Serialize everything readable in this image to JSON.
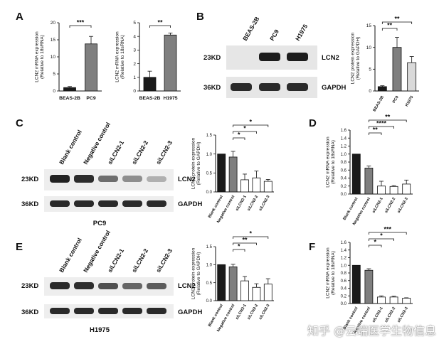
{
  "watermark": "知乎 @云端医学生物信息",
  "colors": {
    "black": "#1a1a1a",
    "dark_gray": "#7f7f7f",
    "light_gray": "#d9d9d9",
    "white": "#ffffff"
  },
  "blot_labels": {
    "kd23": "23KD",
    "kd36": "36KD",
    "lcn2": "LCN2",
    "gapdh": "GAPDH",
    "pc9_caption": "PC9",
    "h1975_caption": "H1975"
  },
  "panel_letters": {
    "A": "A",
    "B": "B",
    "C": "C",
    "D": "D",
    "E": "E",
    "F": "F"
  },
  "lanes_B": [
    "BEAS-2B",
    "PC9",
    "H1975"
  ],
  "lanes_CE": [
    "Blank control",
    "Negative control",
    "siLCN2-1",
    "siLCN2-2",
    "siLCN2-3"
  ],
  "chart_data": [
    {
      "id": "A1",
      "type": "bar",
      "categories": [
        "BEAS-2B",
        "PC9"
      ],
      "values": [
        1,
        13.8
      ],
      "errors": [
        0.3,
        2.2
      ],
      "colors": [
        "#1a1a1a",
        "#7f7f7f"
      ],
      "ylabel": "LCN2 mRNA expression\n(Relative to 18sRNA)",
      "ylim": [
        0,
        20
      ],
      "yticks": [
        0,
        5,
        10,
        15,
        20
      ],
      "annotations": [
        {
          "from": 0,
          "to": 1,
          "text": "***"
        }
      ]
    },
    {
      "id": "A2",
      "type": "bar",
      "categories": [
        "BEAS-2B",
        "H1975"
      ],
      "values": [
        1,
        4.1
      ],
      "errors": [
        0.45,
        0.15
      ],
      "colors": [
        "#1a1a1a",
        "#7f7f7f"
      ],
      "ylabel": "LCN2 mRNA expression\n(Relative to 18sRNA)",
      "ylim": [
        0,
        5
      ],
      "yticks": [
        0,
        1,
        2,
        3,
        4,
        5
      ],
      "annotations": [
        {
          "from": 0,
          "to": 1,
          "text": "**"
        }
      ]
    },
    {
      "id": "B",
      "type": "bar",
      "categories": [
        "BEAS-2B",
        "PC9",
        "H1975"
      ],
      "values": [
        1,
        10,
        6.5
      ],
      "errors": [
        0.2,
        2.3,
        1.4
      ],
      "colors": [
        "#1a1a1a",
        "#7f7f7f",
        "#d9d9d9"
      ],
      "ylabel": "LCN2 protein expression\n(Relative to GAPDH)",
      "ylim": [
        0,
        15
      ],
      "yticks": [
        0,
        5,
        10,
        15
      ],
      "annotations": [
        {
          "from": 0,
          "to": 1,
          "text": "**"
        },
        {
          "from": 0,
          "to": 2,
          "text": "**"
        }
      ]
    },
    {
      "id": "C",
      "type": "bar",
      "categories": [
        "Blank control",
        "Negative control",
        "siLCN2-1",
        "siLCN2-2",
        "siLCN2-3"
      ],
      "values": [
        1,
        0.92,
        0.32,
        0.37,
        0.28
      ],
      "errors": [
        0,
        0.15,
        0.15,
        0.18,
        0.05
      ],
      "colors": [
        "#1a1a1a",
        "#7f7f7f",
        "#ffffff",
        "#ffffff",
        "#ffffff"
      ],
      "ylabel": "LCN2 protein expression\n(Relative to GAPDH)",
      "ylim": [
        0,
        1.5
      ],
      "yticks": [
        0.0,
        0.5,
        1.0,
        1.5
      ],
      "annotations": [
        {
          "from": 1,
          "to": 2,
          "text": "*"
        },
        {
          "from": 1,
          "to": 3,
          "text": "*"
        },
        {
          "from": 1,
          "to": 4,
          "text": "*"
        }
      ]
    },
    {
      "id": "D",
      "type": "bar",
      "categories": [
        "Blank control",
        "Negative control",
        "siLCN2-1",
        "siLCN2-2",
        "siLCN2-3"
      ],
      "values": [
        1,
        0.65,
        0.2,
        0.19,
        0.25
      ],
      "errors": [
        0,
        0.05,
        0.12,
        0.02,
        0.1
      ],
      "colors": [
        "#1a1a1a",
        "#7f7f7f",
        "#ffffff",
        "#ffffff",
        "#ffffff"
      ],
      "ylabel": "LCN2 mRNA expression\n(Relative to 18sRNA)",
      "ylim": [
        0,
        1.6
      ],
      "yticks": [
        0.0,
        0.2,
        0.4,
        0.6,
        0.8,
        1.0,
        1.2,
        1.4,
        1.6
      ],
      "annotations": [
        {
          "from": 1,
          "to": 2,
          "text": "**"
        },
        {
          "from": 1,
          "to": 3,
          "text": "****"
        },
        {
          "from": 1,
          "to": 4,
          "text": "**"
        }
      ]
    },
    {
      "id": "E",
      "type": "bar",
      "categories": [
        "Blank control",
        "Negative control",
        "siLCN2-1",
        "siLCN2-2",
        "siLCN2-3"
      ],
      "values": [
        1,
        0.94,
        0.55,
        0.37,
        0.46
      ],
      "errors": [
        0,
        0.07,
        0.12,
        0.1,
        0.15
      ],
      "colors": [
        "#1a1a1a",
        "#7f7f7f",
        "#ffffff",
        "#ffffff",
        "#ffffff"
      ],
      "ylabel": "LCN2 protein expression\n(Relative to GAPDH)",
      "ylim": [
        0,
        1.5
      ],
      "yticks": [
        0.0,
        0.5,
        1.0,
        1.5
      ],
      "annotations": [
        {
          "from": 1,
          "to": 2,
          "text": "*"
        },
        {
          "from": 1,
          "to": 3,
          "text": "**"
        },
        {
          "from": 1,
          "to": 4,
          "text": "*"
        }
      ]
    },
    {
      "id": "F",
      "type": "bar",
      "categories": [
        "Blank control",
        "Negative control",
        "siLCN2-1",
        "siLCN2-2",
        "siLCN2-3"
      ],
      "values": [
        1,
        0.87,
        0.17,
        0.17,
        0.14
      ],
      "errors": [
        0,
        0.04,
        0.03,
        0.02,
        0.01
      ],
      "colors": [
        "#1a1a1a",
        "#7f7f7f",
        "#ffffff",
        "#ffffff",
        "#ffffff"
      ],
      "ylabel": "LCN2 mRNA expression\n(Relative to 18sRNA)",
      "ylim": [
        0,
        1.6
      ],
      "yticks": [
        0.0,
        0.2,
        0.4,
        0.6,
        0.8,
        1.0,
        1.2,
        1.4,
        1.6
      ],
      "annotations": [
        {
          "from": 1,
          "to": 2,
          "text": "*"
        },
        {
          "from": 1,
          "to": 3,
          "text": "*"
        },
        {
          "from": 1,
          "to": 4,
          "text": "***"
        }
      ]
    }
  ]
}
